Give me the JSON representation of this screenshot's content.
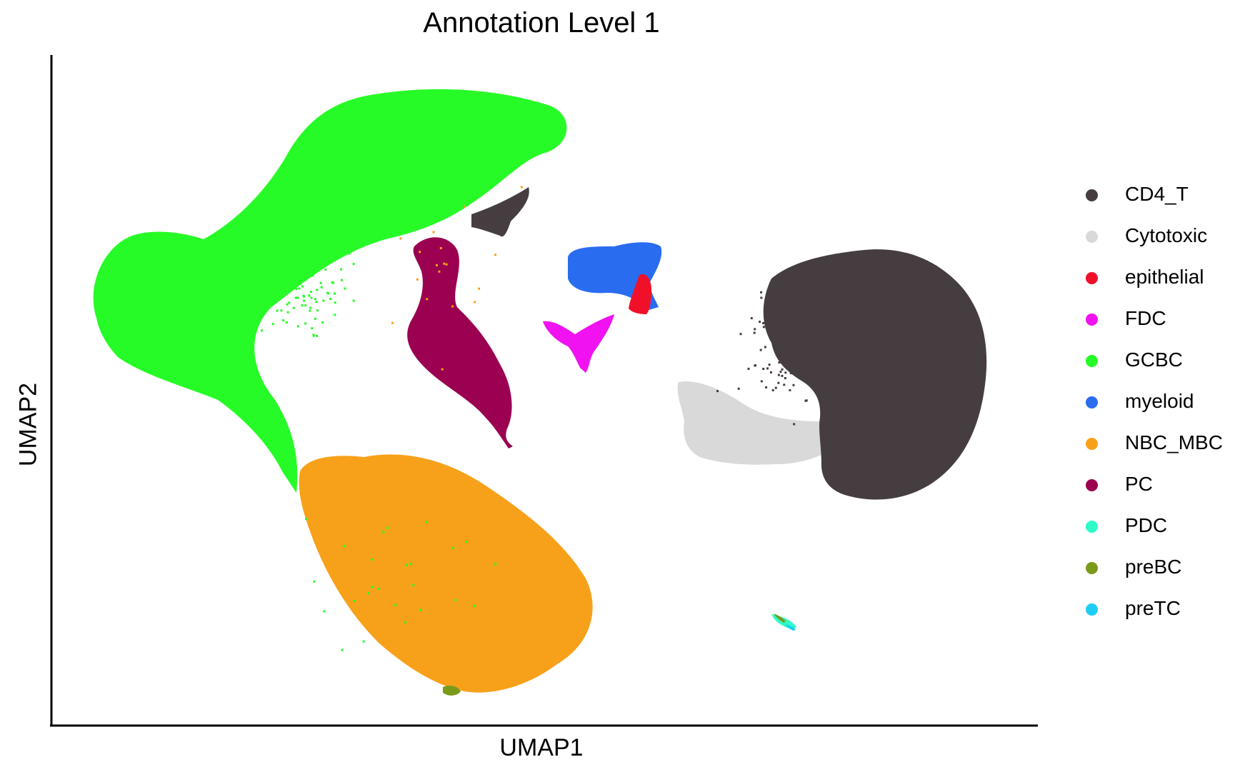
{
  "chart_data": {
    "type": "scatter",
    "title": "Annotation Level 1",
    "xlabel": "UMAP1",
    "ylabel": "UMAP2",
    "xlim": [
      0,
      100
    ],
    "ylim": [
      0,
      100
    ],
    "axis_ticks": false,
    "grid": false,
    "legend_position": "right",
    "series": [
      {
        "name": "CD4_T",
        "color": "#453d40"
      },
      {
        "name": "Cytotoxic",
        "color": "#d9d9d9"
      },
      {
        "name": "epithelial",
        "color": "#f0102a"
      },
      {
        "name": "FDC",
        "color": "#f012f0"
      },
      {
        "name": "GCBC",
        "color": "#27fb27"
      },
      {
        "name": "myeloid",
        "color": "#2a6cf0"
      },
      {
        "name": "NBC_MBC",
        "color": "#f7a11a"
      },
      {
        "name": "PC",
        "color": "#9b0051"
      },
      {
        "name": "PDC",
        "color": "#2efcc9"
      },
      {
        "name": "preBC",
        "color": "#7a9b1a"
      },
      {
        "name": "preTC",
        "color": "#1fcdf5"
      }
    ]
  }
}
